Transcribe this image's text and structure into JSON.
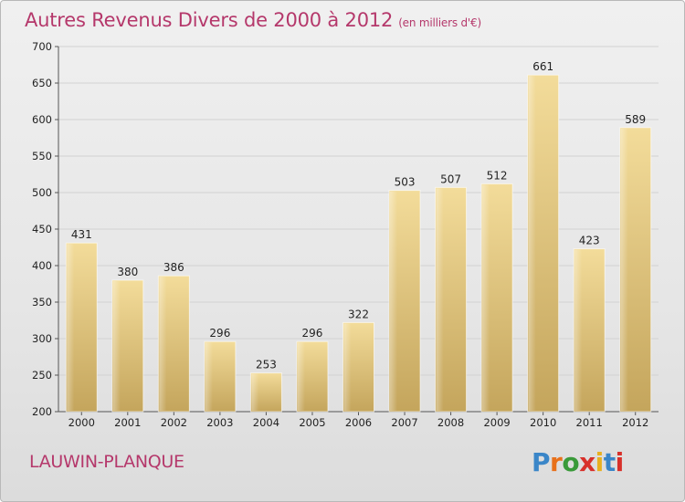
{
  "title": "Autres Revenus Divers de 2000 à 2012",
  "subtitle": "(en milliers d'€)",
  "commune": "LAUWIN-PLANQUE",
  "logo": {
    "text": "Proxiti",
    "letters": [
      "P",
      "r",
      "o",
      "x",
      "i",
      "t",
      "i"
    ],
    "colors": [
      "#3a86c8",
      "#e8701a",
      "#3a9a3a",
      "#d8302a",
      "#e8b020",
      "#3a86c8",
      "#d8302a"
    ]
  },
  "colors": {
    "bar_light": "#f3dc9a",
    "bar_dark": "#c4a55c",
    "title": "#b5386b"
  },
  "chart_data": {
    "type": "bar",
    "categories": [
      "2000",
      "2001",
      "2002",
      "2003",
      "2004",
      "2005",
      "2006",
      "2007",
      "2008",
      "2009",
      "2010",
      "2011",
      "2012"
    ],
    "values": [
      431,
      380,
      386,
      296,
      253,
      296,
      322,
      503,
      507,
      512,
      661,
      423,
      589
    ],
    "ylim": [
      200,
      700
    ],
    "yticks": [
      200,
      250,
      300,
      350,
      400,
      450,
      500,
      550,
      600,
      650,
      700
    ],
    "grid": true
  }
}
